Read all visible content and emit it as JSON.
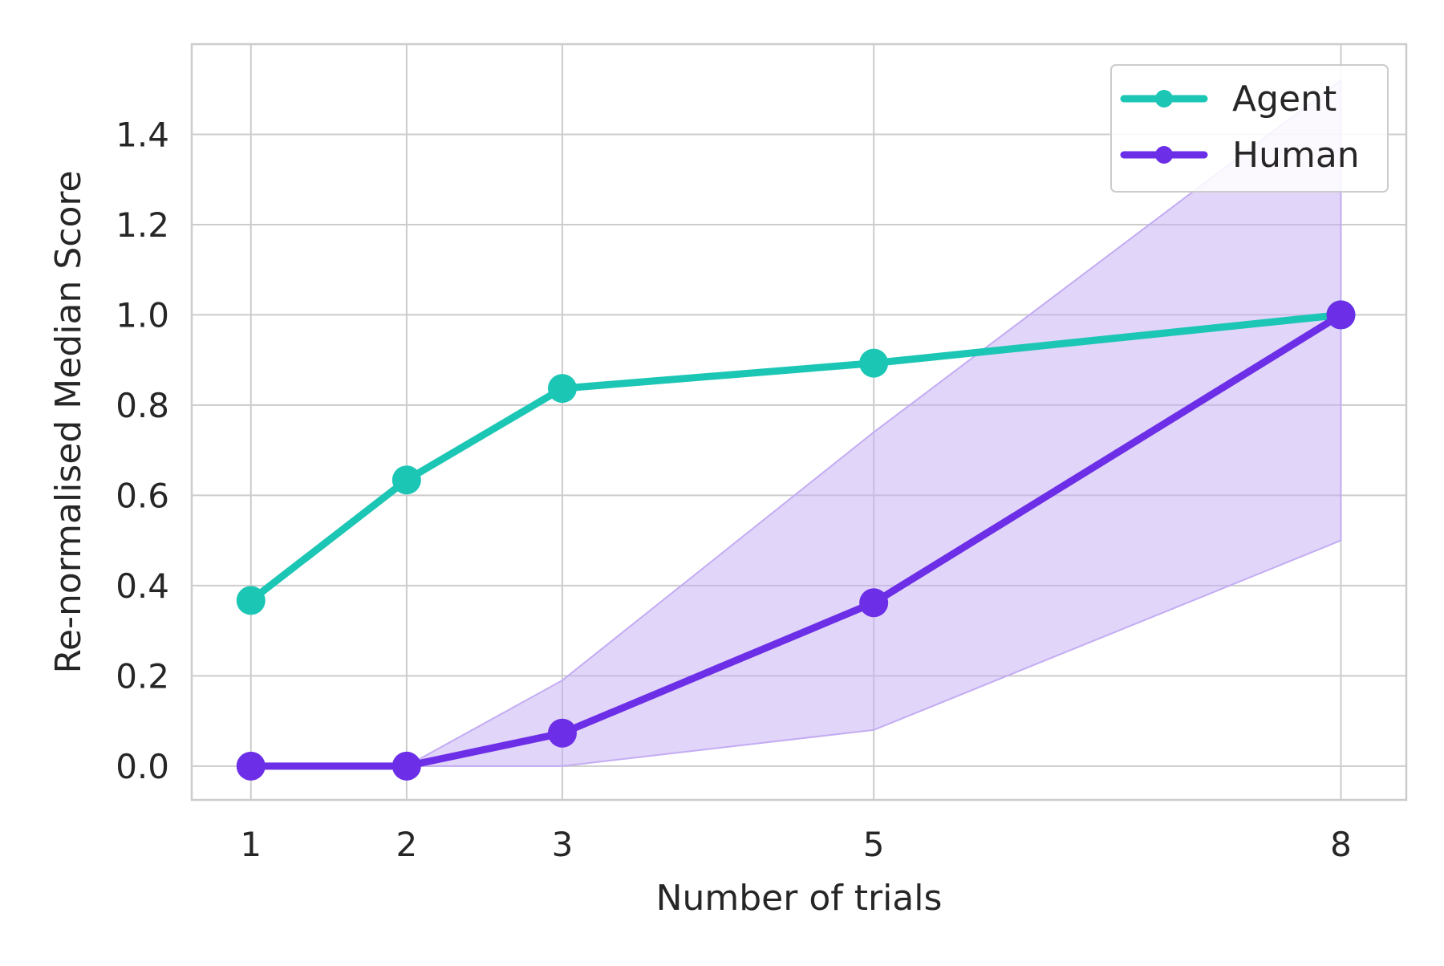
{
  "chart_data": {
    "type": "line",
    "title": "",
    "xlabel": "Number of trials",
    "ylabel": "Re-normalised Median Score",
    "x": [
      1,
      2,
      3,
      5,
      8
    ],
    "xticks": [
      "1",
      "2",
      "3",
      "5",
      "8"
    ],
    "xlim": [
      0.62,
      8.42
    ],
    "yticks": [
      "0.0",
      "0.2",
      "0.4",
      "0.6",
      "0.8",
      "1.0",
      "1.2",
      "1.4"
    ],
    "ylim": [
      -0.075,
      1.6
    ],
    "grid": true,
    "legend_position": "top-right",
    "series": [
      {
        "name": "Agent",
        "color": "#1cc6b5",
        "values": [
          0.367,
          0.634,
          0.837,
          0.893,
          1.0
        ]
      },
      {
        "name": "Human",
        "color": "#6c2ee6",
        "values": [
          0.0,
          0.0,
          0.073,
          0.362,
          1.0
        ],
        "band": {
          "color": "#c3acf3",
          "lower": [
            0.0,
            0.0,
            0.0,
            0.08,
            0.5
          ],
          "upper": [
            0.0,
            0.0,
            0.19,
            0.74,
            1.52
          ]
        }
      }
    ]
  }
}
